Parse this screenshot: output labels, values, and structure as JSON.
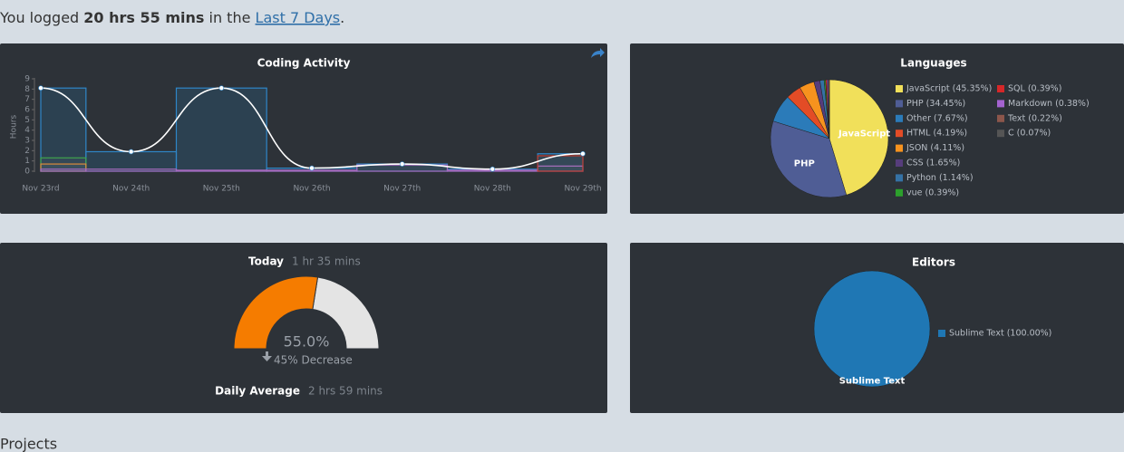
{
  "header": {
    "prefix": "You logged ",
    "total": "20 hrs 55 mins",
    "middle": " in the ",
    "period": "Last 7 Days",
    "suffix": "."
  },
  "chart_data": [
    {
      "type": "line",
      "title": "Coding Activity",
      "ylabel": "Hours",
      "categories": [
        "Nov 23rd",
        "Nov 24th",
        "Nov 25th",
        "Nov 26th",
        "Nov 27th",
        "Nov 28th",
        "Nov 29th"
      ],
      "values": [
        8.1,
        1.9,
        8.1,
        0.3,
        0.7,
        0.2,
        1.7
      ],
      "color": "#ffffff",
      "bar_color": "#2f86c8",
      "series": [
        {
          "color": "#3fa34d",
          "values": [
            1.3,
            0,
            0,
            0,
            0,
            0,
            0
          ]
        },
        {
          "color": "#d98b3a",
          "values": [
            0.7,
            0,
            0,
            0,
            0,
            0,
            0
          ]
        },
        {
          "color": "#a569bd",
          "values": [
            0.2,
            0.2,
            0.1,
            0.1,
            0.6,
            0.1,
            0.5
          ]
        },
        {
          "color": "#c0392b",
          "values": [
            0,
            0,
            0,
            0,
            0,
            0,
            1.5
          ]
        }
      ],
      "ylim": [
        0,
        9
      ],
      "yticks": [
        0,
        1,
        2,
        3,
        4,
        5,
        6,
        7,
        8,
        9
      ]
    },
    {
      "type": "pie",
      "title": "Languages",
      "categories": [
        "JavaScript",
        "PHP",
        "Other",
        "HTML",
        "JSON",
        "CSS",
        "Python",
        "vue",
        "SQL",
        "Markdown",
        "Text",
        "C"
      ],
      "values": [
        45.35,
        34.45,
        7.67,
        4.19,
        4.11,
        1.65,
        1.14,
        0.39,
        0.39,
        0.38,
        0.22,
        0.07
      ],
      "legend_labels": [
        "JavaScript (45.35%)",
        "PHP (34.45%)",
        "Other (7.67%)",
        "HTML (4.19%)",
        "JSON (4.11%)",
        "CSS (1.65%)",
        "Python (1.14%)",
        "vue (0.39%)",
        "SQL (0.39%)",
        "Markdown (0.38%)",
        "Text (0.22%)",
        "C (0.07%)"
      ],
      "colors": [
        "#f1e05a",
        "#4f5d95",
        "#2b7bb9",
        "#e34c26",
        "#f7931e",
        "#563d7c",
        "#3572a5",
        "#2ca02c",
        "#d62728",
        "#a463d0",
        "#8c564b",
        "#555555"
      ]
    },
    {
      "type": "gauge",
      "label": "Today",
      "today": "1 hr 35 mins",
      "value": 55.0,
      "value_label": "55.0%",
      "ylim": [
        0,
        100
      ],
      "change": "45% Decrease",
      "average_label": "Daily Average",
      "average": "2 hrs 59 mins",
      "color": "#f57c00",
      "rest_color": "#e4e4e4"
    },
    {
      "type": "pie",
      "title": "Editors",
      "categories": [
        "Sublime Text"
      ],
      "values": [
        100
      ],
      "legend_labels": [
        "Sublime Text (100.00%)"
      ],
      "colors": [
        "#1f77b4"
      ]
    }
  ],
  "footer": {
    "title": "Projects"
  }
}
